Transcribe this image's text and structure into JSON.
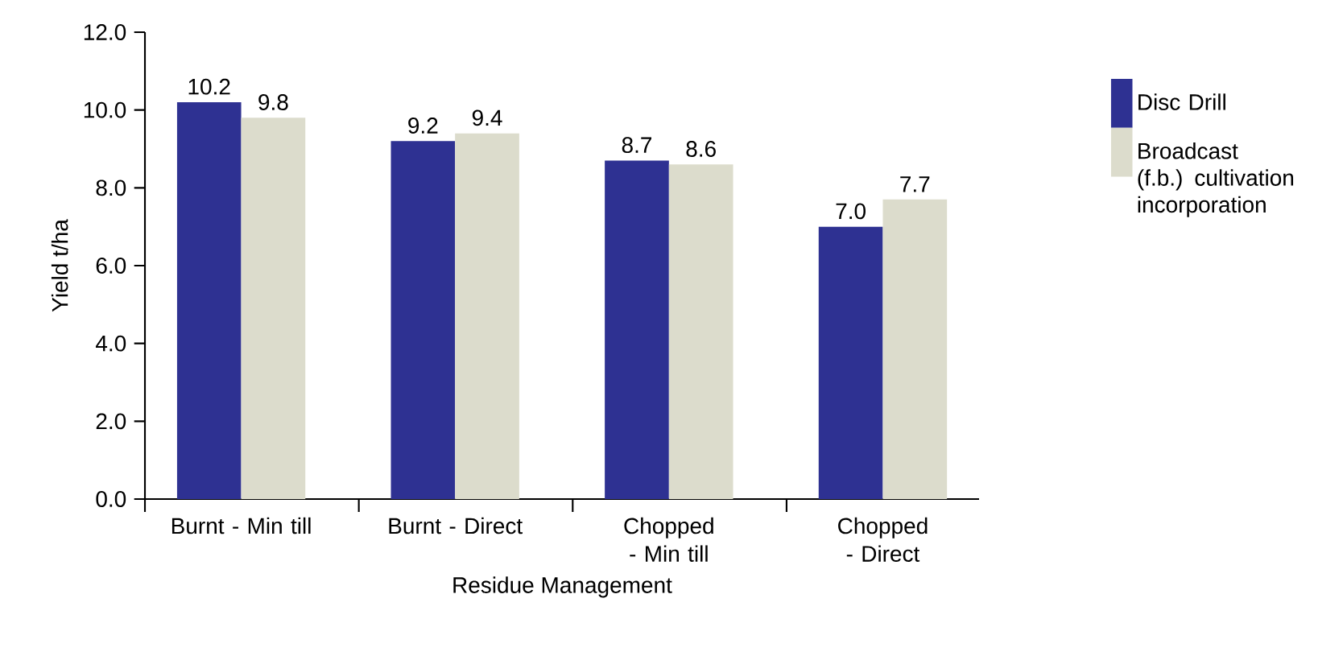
{
  "chart_data": {
    "type": "bar",
    "xlabel": "Residue Management",
    "ylabel": "Yield t/ha",
    "categories": [
      "Burnt - Min till",
      "Burnt - Direct",
      "Chopped - Min till",
      "Chopped - Direct"
    ],
    "series": [
      {
        "name": "Disc Drill",
        "color": "#2e3192",
        "values": [
          10.2,
          9.2,
          8.7,
          7.0
        ],
        "value_labels": [
          "10.2",
          "9.2",
          "8.7",
          "7.0"
        ]
      },
      {
        "name": "Broadcast (f.b.) cultivation incorporation",
        "color": "#dcdccc",
        "values": [
          9.8,
          9.4,
          8.6,
          7.7
        ],
        "value_labels": [
          "9.8",
          "9.4",
          "8.6",
          "7.7"
        ]
      }
    ],
    "ylim": [
      0,
      12
    ],
    "yticks": [
      {
        "value": 0,
        "label": "0.0"
      },
      {
        "value": 2,
        "label": "2.0"
      },
      {
        "value": 4,
        "label": "4.0"
      },
      {
        "value": 6,
        "label": "6.0"
      },
      {
        "value": 8,
        "label": "8.0"
      },
      {
        "value": 10,
        "label": "10.0"
      },
      {
        "value": 12,
        "label": "12.0"
      }
    ],
    "legend": "right"
  }
}
